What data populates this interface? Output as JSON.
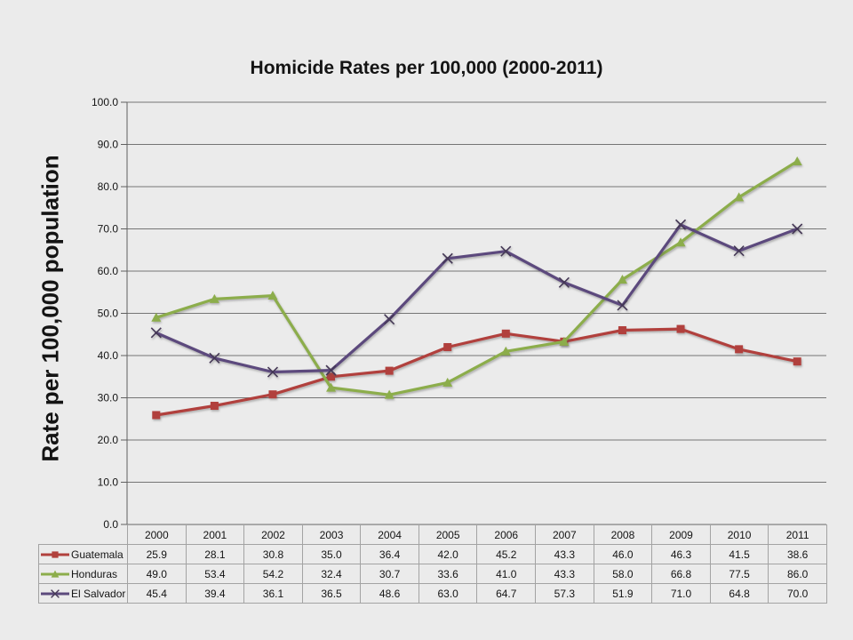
{
  "chart_data": {
    "type": "line",
    "title": "Homicide Rates per 100,000 (2000-2011)",
    "ylabel": "Rate per 100,000 population",
    "xlabel": "",
    "categories": [
      "2000",
      "2001",
      "2002",
      "2003",
      "2004",
      "2005",
      "2006",
      "2007",
      "2008",
      "2009",
      "2010",
      "2011"
    ],
    "ylim": [
      0,
      100
    ],
    "ytick_step": 10,
    "ytick_labels": [
      "0.0",
      "10.0",
      "20.0",
      "30.0",
      "40.0",
      "50.0",
      "60.0",
      "70.0",
      "80.0",
      "90.0",
      "100.0"
    ],
    "grid": true,
    "legend_position": "table-left",
    "series": [
      {
        "name": "Guatemala",
        "marker": "square",
        "color": "#b1413d",
        "values": [
          25.9,
          28.1,
          30.8,
          35.0,
          36.4,
          42.0,
          45.2,
          43.3,
          46.0,
          46.3,
          41.5,
          38.6
        ]
      },
      {
        "name": "Honduras",
        "marker": "triangle",
        "color": "#8cad4b",
        "values": [
          49.0,
          53.4,
          54.2,
          32.4,
          30.7,
          33.6,
          41.0,
          43.3,
          58.0,
          66.8,
          77.5,
          86.0
        ]
      },
      {
        "name": "El Salvador",
        "marker": "x",
        "color": "#5c4a7d",
        "marker_color": "#453956",
        "values": [
          45.4,
          39.4,
          36.1,
          36.5,
          48.6,
          63.0,
          64.7,
          57.3,
          51.9,
          71.0,
          64.8,
          70.0
        ]
      }
    ],
    "styles": {
      "background": "#ebebeb",
      "grid_color": "#757575",
      "axis_color": "#5f5f5f",
      "table_border_color": "#a3a3a3",
      "text_color": "#141414"
    }
  }
}
